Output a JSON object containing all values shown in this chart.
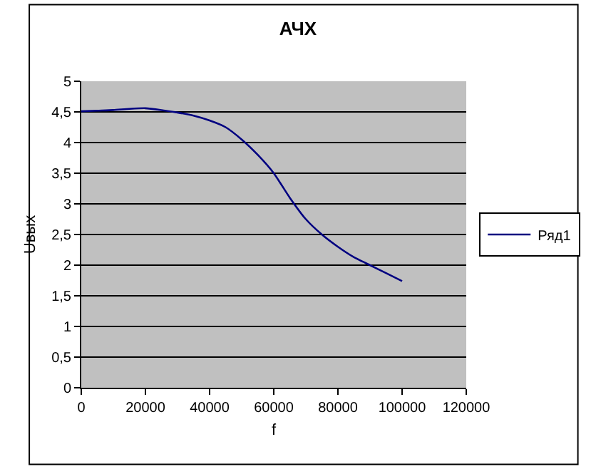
{
  "chart_data": {
    "type": "line",
    "title": "АЧХ",
    "xlabel": "f",
    "ylabel": "Uвых",
    "x": [
      0,
      5000,
      10000,
      15000,
      20000,
      25000,
      30000,
      35000,
      40000,
      45000,
      50000,
      55000,
      60000,
      65000,
      70000,
      75000,
      80000,
      85000,
      90000,
      95000,
      100000
    ],
    "series": [
      {
        "name": "Ряд1",
        "color": "#000080",
        "values": [
          4.51,
          4.52,
          4.53,
          4.55,
          4.56,
          4.53,
          4.49,
          4.44,
          4.36,
          4.25,
          4.05,
          3.8,
          3.5,
          3.1,
          2.75,
          2.5,
          2.3,
          2.13,
          2.0,
          1.87,
          1.74
        ]
      }
    ],
    "xlim": [
      0,
      120000
    ],
    "xticks": [
      0,
      20000,
      40000,
      60000,
      80000,
      100000,
      120000
    ],
    "ylim": [
      0,
      5
    ],
    "yticks": [
      0,
      {
        "value": 0.5,
        "label": "0,5"
      },
      1,
      {
        "value": 1.5,
        "label": "1,5"
      },
      2,
      {
        "value": 2.5,
        "label": "2,5"
      },
      3,
      {
        "value": 3.5,
        "label": "3,5"
      },
      4,
      {
        "value": 4.5,
        "label": "4,5"
      },
      5
    ],
    "grid": "y",
    "legend": "right",
    "marker": "none",
    "line_style": "solid"
  }
}
